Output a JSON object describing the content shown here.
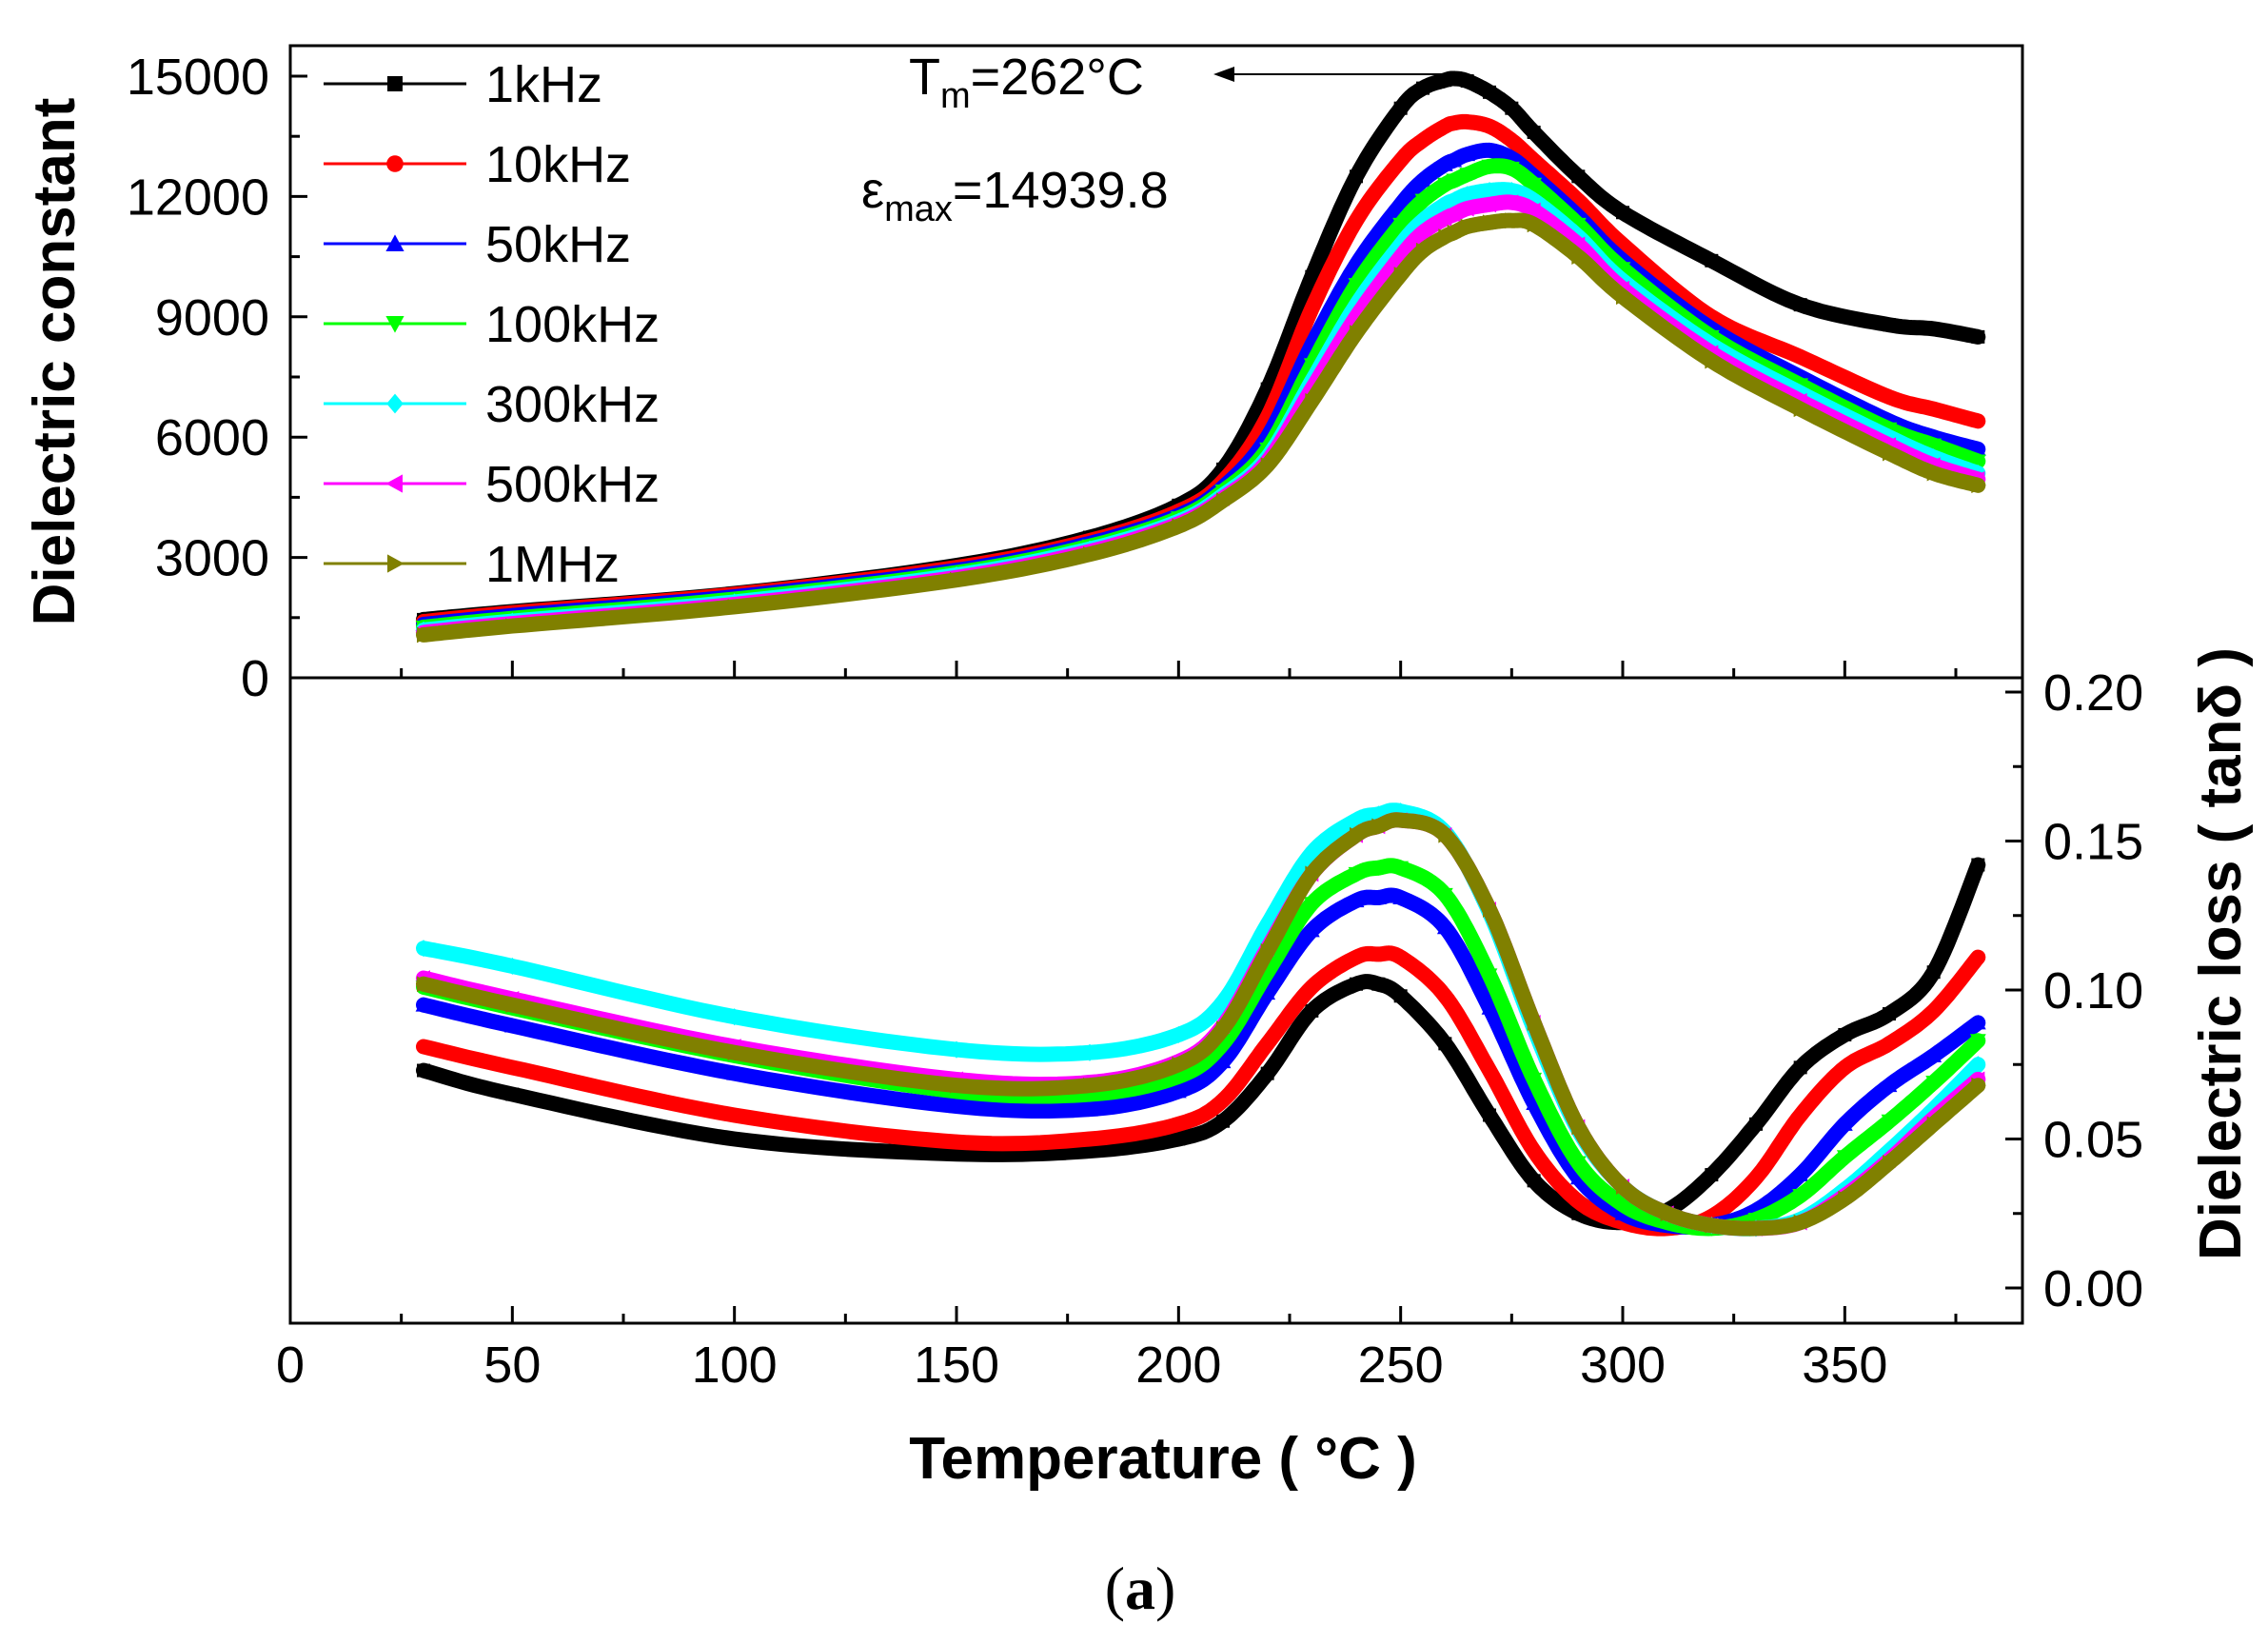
{
  "figure_label": {
    "open": "(",
    "letter": "a",
    "close": ")"
  },
  "chart_data": [
    {
      "type": "line",
      "panel": "top",
      "xlabel": "Temperature ( °C )",
      "ylabel": "Dielectric constant",
      "xlim": [
        0,
        390
      ],
      "ylim": [
        0,
        15000
      ],
      "x_ticks": [
        0,
        50,
        100,
        150,
        200,
        250,
        300,
        350
      ],
      "x_tick_labels": [
        "0",
        "50",
        "100",
        "150",
        "200",
        "250",
        "300",
        "350"
      ],
      "y_ticks": [
        0,
        3000,
        6000,
        9000,
        12000,
        15000
      ],
      "y_tick_labels": [
        "0",
        "3000",
        "6000",
        "9000",
        "12000",
        "15000"
      ],
      "legend_position": "top-left",
      "annotations": {
        "tm_main": "T",
        "tm_sub": "m",
        "tm_value": "=262°C",
        "eps_main": "ε",
        "eps_sub": "max",
        "eps_value": "=14939.8"
      },
      "x": [
        30,
        50,
        100,
        150,
        180,
        200,
        210,
        220,
        230,
        240,
        250,
        255,
        260,
        262,
        265,
        270,
        275,
        280,
        290,
        300,
        320,
        340,
        360,
        370,
        380
      ],
      "series": [
        {
          "name": "1kHz",
          "color": "#000000",
          "marker": "square",
          "values": [
            1450,
            1650,
            2100,
            2800,
            3500,
            4300,
            5200,
            7200,
            10000,
            12500,
            14200,
            14700,
            14900,
            14940,
            14880,
            14600,
            14200,
            13600,
            12500,
            11600,
            10400,
            9300,
            8800,
            8700,
            8500
          ]
        },
        {
          "name": "10kHz",
          "color": "#ff0000",
          "marker": "circle",
          "values": [
            1400,
            1620,
            2080,
            2750,
            3420,
            4150,
            4900,
            6500,
            9200,
            11400,
            12900,
            13400,
            13750,
            13830,
            13860,
            13750,
            13400,
            12900,
            11900,
            10800,
            9000,
            8000,
            7000,
            6700,
            6400
          ]
        },
        {
          "name": "50kHz",
          "color": "#0000ff",
          "marker": "triangle-up",
          "values": [
            1330,
            1550,
            2020,
            2680,
            3350,
            4050,
            4750,
            6000,
            8300,
            10300,
            11800,
            12400,
            12800,
            12900,
            13050,
            13150,
            12950,
            12500,
            11500,
            10400,
            8700,
            7500,
            6400,
            6000,
            5700
          ]
        },
        {
          "name": "100kHz",
          "color": "#00ff00",
          "marker": "triangle-down",
          "values": [
            1260,
            1480,
            1960,
            2620,
            3280,
            3980,
            4650,
            5700,
            7800,
            9800,
            11300,
            11900,
            12300,
            12400,
            12550,
            12750,
            12700,
            12300,
            11300,
            10200,
            8500,
            7300,
            6200,
            5800,
            5400
          ]
        },
        {
          "name": "300kHz",
          "color": "#00ffff",
          "marker": "diamond",
          "values": [
            1190,
            1410,
            1890,
            2560,
            3210,
            3900,
            4550,
            5500,
            7400,
            9300,
            10800,
            11400,
            11800,
            11900,
            12050,
            12150,
            12150,
            11900,
            11000,
            9900,
            8300,
            7100,
            6000,
            5500,
            5100
          ]
        },
        {
          "name": "500kHz",
          "color": "#ff00ff",
          "marker": "triangle-left",
          "values": [
            1130,
            1350,
            1830,
            2500,
            3150,
            3840,
            4480,
            5400,
            7200,
            9000,
            10500,
            11100,
            11450,
            11550,
            11700,
            11800,
            11850,
            11650,
            10800,
            9700,
            8100,
            6900,
            5800,
            5300,
            4950
          ]
        },
        {
          "name": "1MHz",
          "color": "#808000",
          "marker": "triangle-right",
          "values": [
            1070,
            1290,
            1770,
            2440,
            3080,
            3780,
            4420,
            5300,
            6900,
            8600,
            10050,
            10650,
            11000,
            11100,
            11250,
            11350,
            11400,
            11300,
            10500,
            9500,
            7900,
            6700,
            5600,
            5100,
            4800
          ]
        }
      ]
    },
    {
      "type": "line",
      "panel": "bottom",
      "xlabel": "Temperature ( °C )",
      "ylabel": "Dielectric loss ( tanδ )",
      "xlim": [
        0,
        390
      ],
      "ylim": [
        -0.005,
        0.205
      ],
      "y_axis_side": "right",
      "y_ticks": [
        0.0,
        0.05,
        0.1,
        0.15,
        0.2
      ],
      "y_tick_labels": [
        "0.00",
        "0.05",
        "0.10",
        "0.15",
        "0.20"
      ],
      "x": [
        30,
        50,
        100,
        150,
        180,
        200,
        210,
        220,
        230,
        240,
        245,
        250,
        260,
        270,
        280,
        290,
        300,
        310,
        320,
        330,
        340,
        350,
        360,
        370,
        380
      ],
      "series": [
        {
          "name": "1kHz",
          "color": "#000000",
          "marker": "square",
          "values": [
            0.073,
            0.065,
            0.05,
            0.045,
            0.046,
            0.05,
            0.056,
            0.072,
            0.093,
            0.102,
            0.102,
            0.098,
            0.082,
            0.058,
            0.036,
            0.025,
            0.022,
            0.026,
            0.038,
            0.055,
            0.074,
            0.085,
            0.092,
            0.106,
            0.142
          ]
        },
        {
          "name": "10kHz",
          "color": "#ff0000",
          "marker": "circle",
          "values": [
            0.081,
            0.074,
            0.058,
            0.049,
            0.05,
            0.055,
            0.063,
            0.082,
            0.101,
            0.111,
            0.112,
            0.111,
            0.098,
            0.073,
            0.046,
            0.029,
            0.022,
            0.02,
            0.024,
            0.037,
            0.058,
            0.074,
            0.082,
            0.093,
            0.111
          ]
        },
        {
          "name": "50kHz",
          "color": "#0000ff",
          "marker": "triangle-up",
          "values": [
            0.095,
            0.088,
            0.072,
            0.061,
            0.06,
            0.066,
            0.076,
            0.099,
            0.12,
            0.13,
            0.131,
            0.131,
            0.121,
            0.094,
            0.062,
            0.037,
            0.025,
            0.021,
            0.021,
            0.026,
            0.038,
            0.055,
            0.068,
            0.078,
            0.089
          ]
        },
        {
          "name": "100kHz",
          "color": "#00ff00",
          "marker": "triangle-down",
          "values": [
            0.101,
            0.094,
            0.078,
            0.066,
            0.065,
            0.071,
            0.082,
            0.106,
            0.129,
            0.139,
            0.141,
            0.141,
            0.132,
            0.105,
            0.07,
            0.042,
            0.028,
            0.022,
            0.02,
            0.023,
            0.031,
            0.044,
            0.056,
            0.069,
            0.083
          ]
        },
        {
          "name": "300kHz",
          "color": "#00ffff",
          "marker": "diamond",
          "values": [
            0.114,
            0.108,
            0.091,
            0.08,
            0.079,
            0.085,
            0.096,
            0.122,
            0.146,
            0.157,
            0.159,
            0.16,
            0.153,
            0.126,
            0.087,
            0.053,
            0.034,
            0.025,
            0.021,
            0.02,
            0.023,
            0.033,
            0.046,
            0.06,
            0.075
          ]
        },
        {
          "name": "500kHz",
          "color": "#ff00ff",
          "marker": "triangle-left",
          "values": [
            0.104,
            0.097,
            0.081,
            0.07,
            0.069,
            0.076,
            0.088,
            0.114,
            0.139,
            0.152,
            0.155,
            0.157,
            0.152,
            0.127,
            0.089,
            0.054,
            0.034,
            0.025,
            0.021,
            0.02,
            0.022,
            0.031,
            0.043,
            0.057,
            0.07
          ]
        },
        {
          "name": "1MHz",
          "color": "#808000",
          "marker": "triangle-right",
          "values": [
            0.102,
            0.095,
            0.079,
            0.068,
            0.068,
            0.075,
            0.087,
            0.113,
            0.139,
            0.152,
            0.155,
            0.157,
            0.152,
            0.127,
            0.089,
            0.054,
            0.034,
            0.025,
            0.021,
            0.02,
            0.022,
            0.03,
            0.042,
            0.055,
            0.068
          ]
        }
      ]
    }
  ]
}
